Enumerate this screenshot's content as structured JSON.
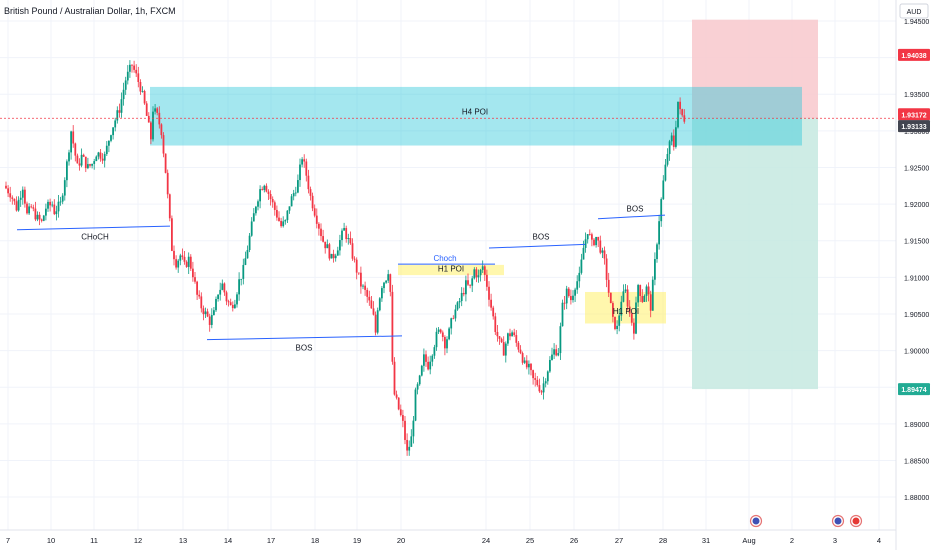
{
  "header": {
    "symbol_title": "British Pound / Australian Dollar, 1h, FXCM",
    "currency_button": "AUD"
  },
  "chart_data": {
    "type": "candlestick",
    "ylim": [
      1.8755,
      1.9465
    ],
    "y_ticks": [
      "1.94500",
      "1.94000",
      "1.93500",
      "1.93000",
      "1.92500",
      "1.92000",
      "1.91500",
      "1.91000",
      "1.90500",
      "1.90000",
      "1.89500",
      "1.89000",
      "1.88500",
      "1.88000"
    ],
    "y_tick_values": [
      1.945,
      1.94,
      1.935,
      1.93,
      1.925,
      1.92,
      1.915,
      1.91,
      1.905,
      1.9,
      1.895,
      1.89,
      1.885,
      1.88
    ],
    "x_ticks": [
      "7",
      "10",
      "11",
      "12",
      "13",
      "14",
      "17",
      "18",
      "19",
      "20",
      "24",
      "25",
      "26",
      "27",
      "28",
      "31",
      "Aug",
      "2",
      "3",
      "4"
    ],
    "price_labels": [
      {
        "text": "1.94038",
        "value": 1.94038,
        "color": "#f23645"
      },
      {
        "text": "1.93172",
        "value": 1.93172,
        "color": "#f23645"
      },
      {
        "text": "1.93133",
        "value": 1.93133,
        "color": "#434651"
      },
      {
        "text": "1.89474",
        "value": 1.89474,
        "color": "#22ab94"
      }
    ],
    "path_points": [
      [
        0,
        1.9225
      ],
      [
        3,
        1.9215
      ],
      [
        6,
        1.9195
      ],
      [
        9,
        1.9225
      ],
      [
        11,
        1.9185
      ],
      [
        13,
        1.9195
      ],
      [
        16,
        1.918
      ],
      [
        18,
        1.9175
      ],
      [
        20,
        1.9195
      ],
      [
        23,
        1.92
      ],
      [
        24,
        1.919
      ],
      [
        27,
        1.92
      ],
      [
        30,
        1.9255
      ],
      [
        32,
        1.93
      ],
      [
        35,
        1.925
      ],
      [
        37,
        1.9265
      ],
      [
        40,
        1.925
      ],
      [
        42,
        1.9255
      ],
      [
        44,
        1.927
      ],
      [
        48,
        1.9265
      ],
      [
        51,
        1.93
      ],
      [
        55,
        1.933
      ],
      [
        58,
        1.937
      ],
      [
        61,
        1.939
      ],
      [
        63,
        1.9375
      ],
      [
        65,
        1.936
      ],
      [
        67,
        1.9335
      ],
      [
        70,
        1.929
      ],
      [
        71,
        1.933
      ],
      [
        73,
        1.932
      ],
      [
        75,
        1.93
      ],
      [
        77,
        1.9245
      ],
      [
        79,
        1.9175
      ],
      [
        80,
        1.914
      ],
      [
        82,
        1.912
      ],
      [
        84,
        1.913
      ],
      [
        86,
        1.9115
      ],
      [
        88,
        1.9125
      ],
      [
        90,
        1.9105
      ],
      [
        92,
        1.9075
      ],
      [
        94,
        1.906
      ],
      [
        96,
        1.905
      ],
      [
        98,
        1.904
      ],
      [
        100,
        1.905
      ],
      [
        102,
        1.908
      ],
      [
        104,
        1.909
      ],
      [
        106,
        1.907
      ],
      [
        108,
        1.906
      ],
      [
        110,
        1.907
      ],
      [
        112,
        1.9095
      ],
      [
        114,
        1.911
      ],
      [
        116,
        1.914
      ],
      [
        118,
        1.917
      ],
      [
        120,
        1.92
      ],
      [
        122,
        1.922
      ],
      [
        124,
        1.923
      ],
      [
        126,
        1.9215
      ],
      [
        128,
        1.92
      ],
      [
        130,
        1.9185
      ],
      [
        132,
        1.917
      ],
      [
        134,
        1.9175
      ],
      [
        136,
        1.92
      ],
      [
        138,
        1.9215
      ],
      [
        140,
        1.923
      ],
      [
        142,
        1.9265
      ],
      [
        144,
        1.924
      ],
      [
        146,
        1.921
      ],
      [
        148,
        1.919
      ],
      [
        150,
        1.917
      ],
      [
        152,
        1.915
      ],
      [
        154,
        1.914
      ],
      [
        156,
        1.9125
      ],
      [
        158,
        1.9135
      ],
      [
        160,
        1.915
      ],
      [
        162,
        1.9165
      ],
      [
        164,
        1.915
      ],
      [
        166,
        1.913
      ],
      [
        168,
        1.911
      ],
      [
        170,
        1.909
      ],
      [
        172,
        1.908
      ],
      [
        174,
        1.9065
      ],
      [
        176,
        1.9045
      ],
      [
        177,
        1.9025
      ],
      [
        178,
        1.906
      ],
      [
        180,
        1.909
      ],
      [
        182,
        1.91
      ],
      [
        183,
        1.911
      ],
      [
        184,
        1.908
      ],
      [
        185,
        1.898
      ],
      [
        186,
        1.894
      ],
      [
        188,
        1.892
      ],
      [
        190,
        1.89
      ],
      [
        192,
        1.886
      ],
      [
        194,
        1.888
      ],
      [
        196,
        1.894
      ],
      [
        198,
        1.896
      ],
      [
        200,
        1.899
      ],
      [
        202,
        1.898
      ],
      [
        204,
        1.9
      ],
      [
        206,
        1.902
      ],
      [
        208,
        1.903
      ],
      [
        210,
        1.901
      ],
      [
        212,
        1.9025
      ],
      [
        214,
        1.905
      ],
      [
        216,
        1.906
      ],
      [
        218,
        1.9075
      ],
      [
        220,
        1.909
      ],
      [
        222,
        1.9085
      ],
      [
        224,
        1.911
      ],
      [
        226,
        1.91
      ],
      [
        228,
        1.9115
      ],
      [
        230,
        1.909
      ],
      [
        232,
        1.906
      ],
      [
        234,
        1.903
      ],
      [
        236,
        1.901
      ],
      [
        238,
        1.9
      ],
      [
        240,
        1.902
      ],
      [
        242,
        1.9025
      ],
      [
        244,
        1.901
      ],
      [
        246,
        1.9
      ],
      [
        248,
        1.898
      ],
      [
        250,
        1.8975
      ],
      [
        252,
        1.896
      ],
      [
        254,
        1.8955
      ],
      [
        256,
        1.8945
      ],
      [
        258,
        1.8965
      ],
      [
        260,
        1.8985
      ],
      [
        262,
        1.9
      ],
      [
        264,
        1.9
      ],
      [
        266,
        1.906
      ],
      [
        268,
        1.908
      ],
      [
        270,
        1.907
      ],
      [
        272,
        1.909
      ],
      [
        274,
        1.91
      ],
      [
        276,
        1.914
      ],
      [
        278,
        1.9165
      ],
      [
        280,
        1.9145
      ],
      [
        282,
        1.9155
      ],
      [
        284,
        1.914
      ],
      [
        286,
        1.912
      ],
      [
        288,
        1.908
      ],
      [
        290,
        1.904
      ],
      [
        292,
        1.903
      ],
      [
        294,
        1.907
      ],
      [
        296,
        1.908
      ],
      [
        298,
        1.905
      ],
      [
        300,
        1.903
      ],
      [
        302,
        1.909
      ],
      [
        304,
        1.907
      ],
      [
        306,
        1.9085
      ],
      [
        308,
        1.906
      ],
      [
        310,
        1.912
      ],
      [
        312,
        1.918
      ],
      [
        314,
        1.923
      ],
      [
        316,
        1.927
      ],
      [
        318,
        1.929
      ],
      [
        319,
        1.928
      ],
      [
        320,
        1.931
      ],
      [
        321,
        1.934
      ],
      [
        322,
        1.9325
      ],
      [
        323,
        1.932
      ],
      [
        324,
        1.9317
      ]
    ],
    "annotations": [
      {
        "label": "H4 POI",
        "type": "zone",
        "color": "#80deea"
      },
      {
        "label": "H1 POI",
        "type": "zone",
        "color": "#fff59d"
      },
      {
        "label": "H1 POI",
        "type": "zone",
        "color": "#fff59d"
      },
      {
        "label": "CHoCH",
        "type": "line",
        "color": "#2962ff"
      },
      {
        "label": "BOS",
        "type": "line",
        "color": "#2962ff"
      },
      {
        "label": "Choch",
        "type": "line",
        "color": "#2962ff"
      },
      {
        "label": "BOS",
        "type": "line",
        "color": "#2962ff"
      },
      {
        "label": "BOS",
        "type": "line",
        "color": "#2962ff"
      }
    ],
    "position": {
      "direction": "short",
      "stop_loss": 1.94038,
      "entry": 1.93172,
      "take_profit": 1.89474
    },
    "colors": {
      "up": "#089981",
      "down": "#f23645",
      "stop_zone": "#f8c8cc",
      "target_zone": "#c6e9e1"
    }
  }
}
